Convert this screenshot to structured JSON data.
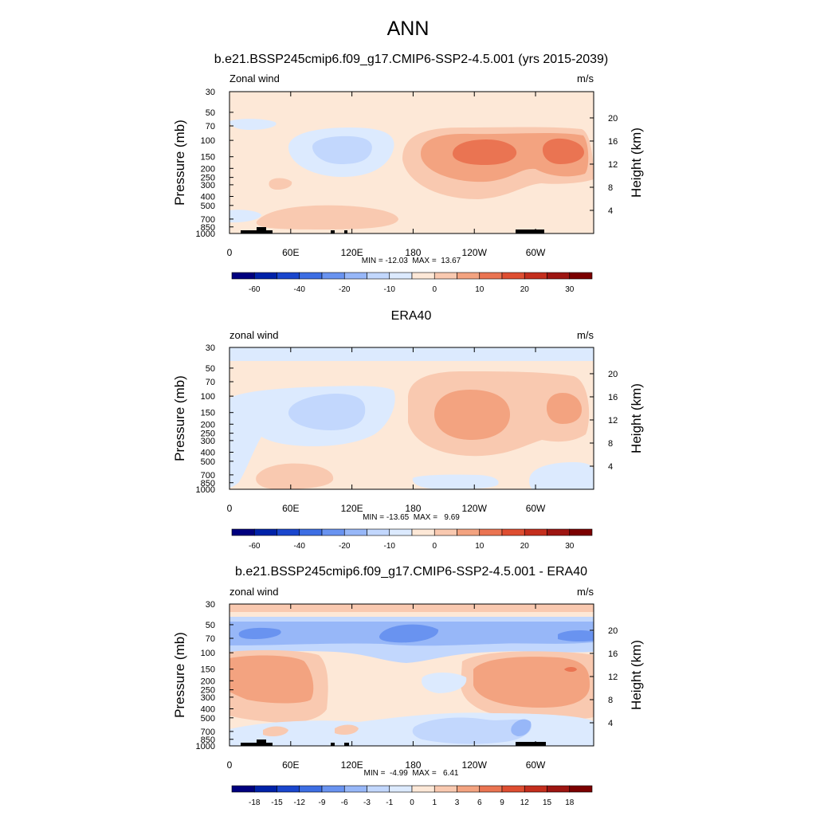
{
  "figure": {
    "title": "ANN"
  },
  "chart_data": [
    {
      "type": "heatmap",
      "title": "b.e21.BSSP245cmip6.f09_g17.CMIP6-SSP2-4.5.001 (yrs 2015-2039)",
      "left_label": "Zonal wind",
      "right_label": "m/s",
      "ylabel": "Pressure (mb)",
      "ylabel_right": "Height (km)",
      "xlim": [
        0,
        357
      ],
      "x_ticks": [
        "0",
        "60E",
        "120E",
        "180",
        "120W",
        "60W"
      ],
      "y_ticks": [
        "30",
        "50",
        "70",
        "100",
        "150",
        "200",
        "250",
        "300",
        "400",
        "500",
        "700",
        "850",
        "1000"
      ],
      "height_ticks": [
        "20",
        "16",
        "12",
        "8",
        "4"
      ],
      "stats": "MIN = -12.03  MAX =  13.67",
      "min": -12.03,
      "max": 13.67,
      "levels": [
        -70,
        -60,
        -50,
        -40,
        -30,
        -20,
        -15,
        -10,
        -5,
        0,
        5,
        10,
        15,
        20,
        25,
        30,
        35
      ],
      "colorbar_labels": [
        "-60",
        "-40",
        "-20",
        "-10",
        "0",
        "10",
        "20",
        "30"
      ],
      "features": [
        {
          "lon": 120,
          "p": 150,
          "value": -7.5
        },
        {
          "lon": 80,
          "p": 60,
          "value": -4
        },
        {
          "lon": 240,
          "p": 150,
          "value": 12
        },
        {
          "lon": 325,
          "p": 150,
          "value": 12
        },
        {
          "lon": 280,
          "p": 160,
          "value": 7
        },
        {
          "lon": 70,
          "p": 650,
          "value": 3
        },
        {
          "lon": 5,
          "p": 750,
          "value": -2
        }
      ]
    },
    {
      "type": "heatmap",
      "title": "ERA40",
      "left_label": "zonal wind",
      "right_label": "m/s",
      "ylabel": "Pressure (mb)",
      "ylabel_right": "Height (km)",
      "xlim": [
        0,
        357
      ],
      "x_ticks": [
        "0",
        "60E",
        "120E",
        "180",
        "120W",
        "60W"
      ],
      "y_ticks": [
        "30",
        "50",
        "70",
        "100",
        "150",
        "200",
        "250",
        "300",
        "400",
        "500",
        "700",
        "850",
        "1000"
      ],
      "height_ticks": [
        "20",
        "16",
        "12",
        "8",
        "4"
      ],
      "stats": "MIN = -13.65  MAX =   9.69",
      "min": -13.65,
      "max": 9.69,
      "levels": [
        -70,
        -60,
        -50,
        -40,
        -30,
        -20,
        -15,
        -10,
        -5,
        0,
        5,
        10,
        15,
        20,
        25,
        30,
        35
      ],
      "colorbar_labels": [
        "-60",
        "-40",
        "-20",
        "-10",
        "0",
        "10",
        "20",
        "30"
      ],
      "features": [
        {
          "lon": 110,
          "p": 140,
          "value": -6
        },
        {
          "lon": 40,
          "p": 200,
          "value": -3
        },
        {
          "lon": 240,
          "p": 140,
          "value": 7
        },
        {
          "lon": 325,
          "p": 140,
          "value": 6.5
        },
        {
          "lon": 50,
          "p": 750,
          "value": 3
        },
        {
          "lon": 330,
          "p": 800,
          "value": -3
        },
        {
          "lon": 230,
          "p": 850,
          "value": -1
        }
      ]
    },
    {
      "type": "heatmap",
      "title": "b.e21.BSSP245cmip6.f09_g17.CMIP6-SSP2-4.5.001 - ERA40",
      "left_label": "zonal wind",
      "right_label": "m/s",
      "ylabel": "Pressure (mb)",
      "ylabel_right": "Height (km)",
      "xlim": [
        0,
        357
      ],
      "x_ticks": [
        "0",
        "60E",
        "120E",
        "180",
        "120W",
        "60W"
      ],
      "y_ticks": [
        "30",
        "50",
        "70",
        "100",
        "150",
        "200",
        "250",
        "300",
        "400",
        "500",
        "700",
        "850",
        "1000"
      ],
      "height_ticks": [
        "20",
        "16",
        "12",
        "8",
        "4"
      ],
      "stats": "MIN =  -4.99  MAX =   6.41",
      "min": -4.99,
      "max": 6.41,
      "levels": [
        -21,
        -18,
        -15,
        -12,
        -9,
        -6,
        -3,
        -1,
        0,
        1,
        3,
        6,
        9,
        12,
        15,
        18,
        21
      ],
      "colorbar_labels": [
        "-18",
        "-15",
        "-12",
        "-9",
        "-6",
        "-3",
        "-1",
        "0",
        "1",
        "3",
        "6",
        "9",
        "12",
        "15",
        "18"
      ],
      "features": [
        {
          "lon": 180,
          "p": 30,
          "value": 1.5
        },
        {
          "lon": 180,
          "p": 60,
          "value": -4
        },
        {
          "lon": 60,
          "p": 200,
          "value": 3.5
        },
        {
          "lon": 300,
          "p": 200,
          "value": 3.5
        },
        {
          "lon": 150,
          "p": 350,
          "value": 1.5
        },
        {
          "lon": 250,
          "p": 700,
          "value": -3
        },
        {
          "lon": 180,
          "p": 200,
          "value": -1
        }
      ]
    }
  ],
  "colors": {
    "levels": [
      "#00007e",
      "#0022a8",
      "#1a46cd",
      "#3d6ee3",
      "#6993f0",
      "#97b7f8",
      "#c2d7fd",
      "#dceafe",
      "#fde8d7",
      "#f9c9b0",
      "#f3a380",
      "#ea7452",
      "#de4e31",
      "#c42e1d",
      "#9d1511",
      "#7b0000"
    ],
    "land": "#000000"
  }
}
